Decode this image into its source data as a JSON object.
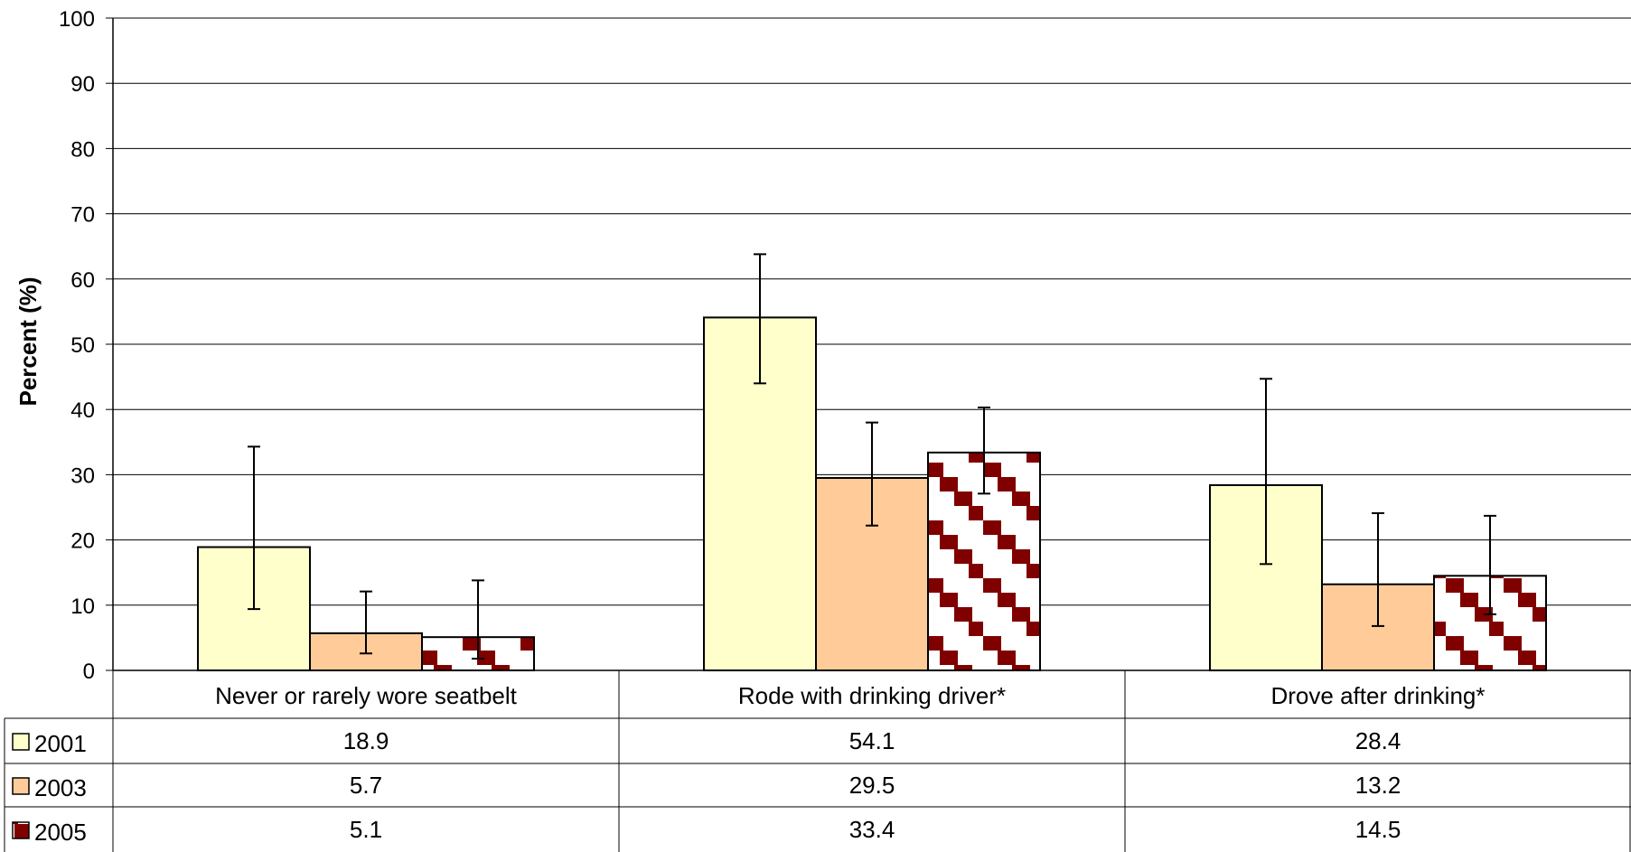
{
  "chart_data": {
    "type": "bar",
    "categories": [
      "Never or rarely wore seatbelt",
      "Rode with drinking driver*",
      "Drove after drinking*"
    ],
    "series": [
      {
        "name": "2001",
        "values": [
          18.9,
          54.1,
          28.4
        ],
        "error_low": [
          9.4,
          44.0,
          16.3
        ],
        "error_high": [
          34.3,
          63.8,
          44.7
        ],
        "color": "#FFFFCC"
      },
      {
        "name": "2003",
        "values": [
          5.7,
          29.5,
          13.2
        ],
        "error_low": [
          2.6,
          22.2,
          6.8
        ],
        "error_high": [
          12.1,
          38.0,
          24.1
        ],
        "color": "#FFCC99"
      },
      {
        "name": "2005",
        "values": [
          5.1,
          33.4,
          14.5
        ],
        "error_low": [
          1.8,
          27.1,
          8.6
        ],
        "error_high": [
          13.8,
          40.3,
          23.7
        ],
        "color": "#800000",
        "pattern": "diagonal-brick"
      }
    ],
    "table_rows": [
      {
        "label": "2001",
        "cells": [
          "18.9",
          "54.1",
          "28.4"
        ]
      },
      {
        "label": "2003",
        "cells": [
          "5.7",
          "29.5",
          "13.2"
        ]
      },
      {
        "label": "2005",
        "cells": [
          "5.1",
          "33.4",
          "14.5"
        ]
      }
    ],
    "ylabel": "Percent (%)",
    "ylim": [
      0,
      100
    ],
    "yticks": [
      "0",
      "10",
      "20",
      "30",
      "40",
      "50",
      "60",
      "70",
      "80",
      "90",
      "100"
    ],
    "grid": true,
    "legend_placement": "data-table"
  }
}
